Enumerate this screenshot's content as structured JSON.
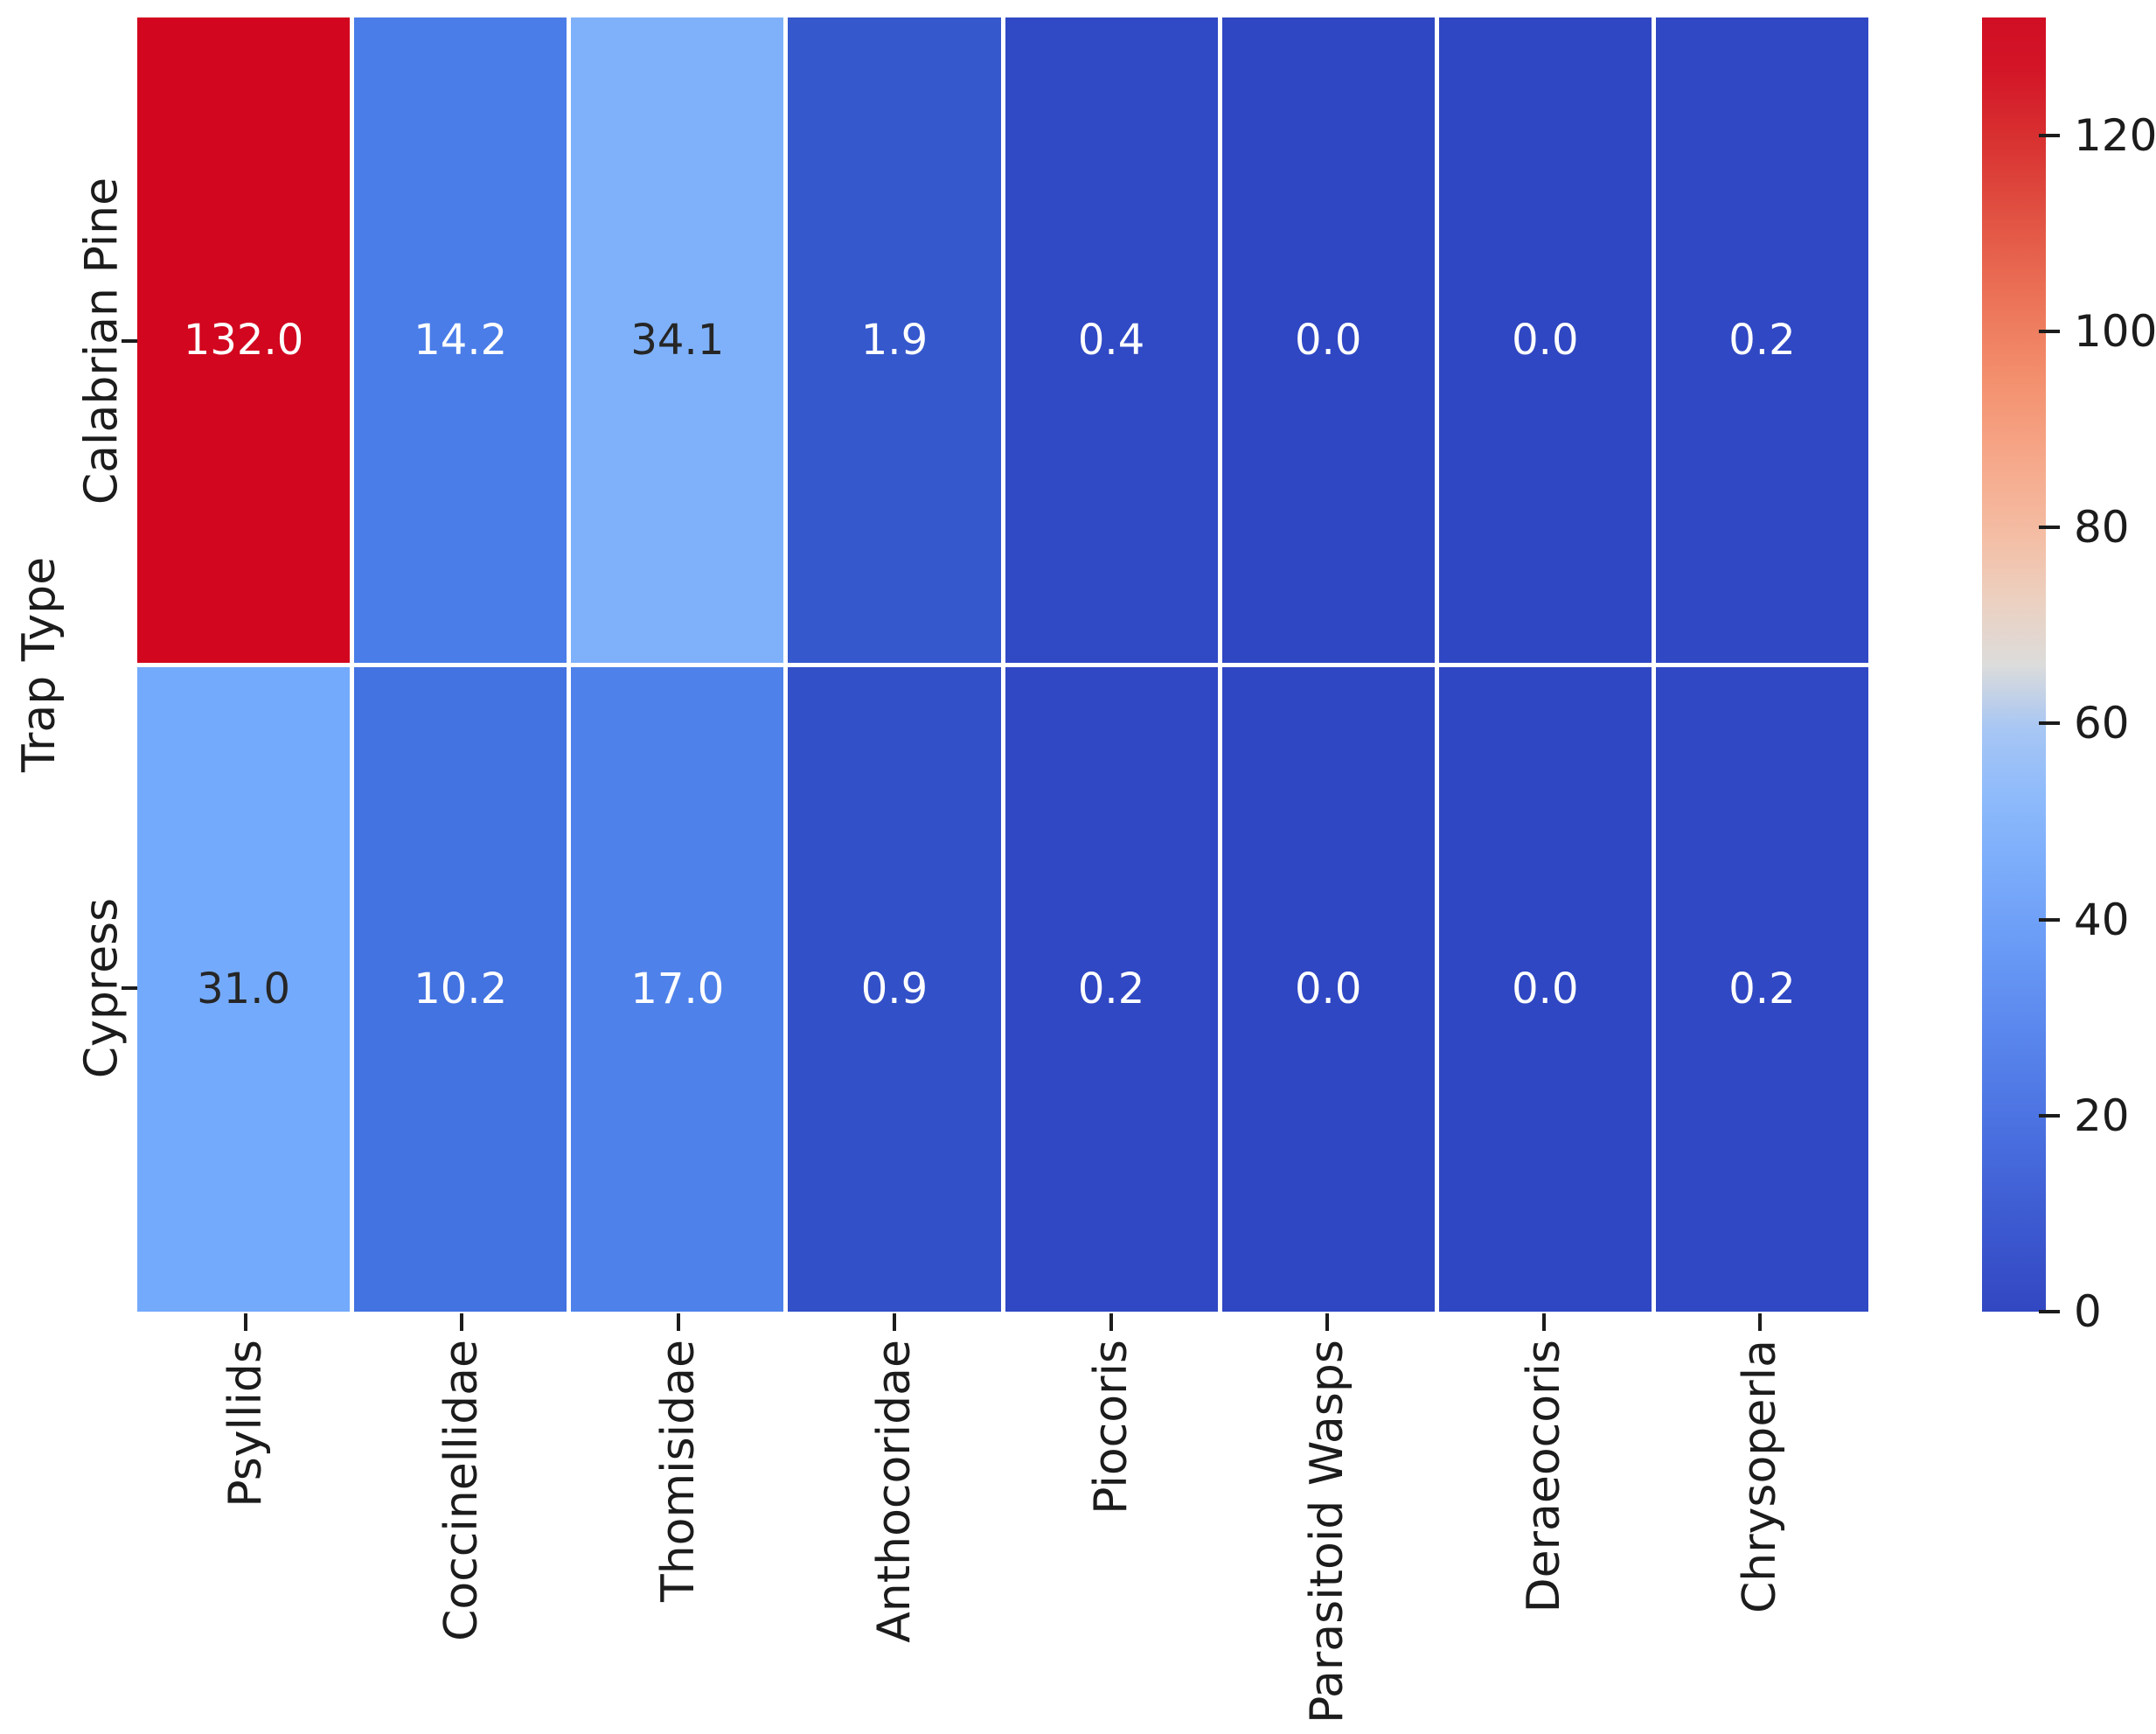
{
  "chart_data": {
    "type": "heatmap",
    "title": "",
    "xlabel": "",
    "ylabel": "Trap Type",
    "rows": [
      "Calabrian Pine",
      "Cypress"
    ],
    "columns": [
      "Psyllids",
      "Coccinellidae",
      "Thomisidae",
      "Anthocoridae",
      "Piocoris",
      "Parasitoid Wasps",
      "Deraeocoris",
      "Chrysoperla"
    ],
    "values": [
      [
        132.0,
        14.2,
        34.1,
        1.9,
        0.4,
        0.0,
        0.0,
        0.2
      ],
      [
        31.0,
        10.2,
        17.0,
        0.9,
        0.2,
        0.0,
        0.0,
        0.2
      ]
    ],
    "cell_text": [
      [
        "132.0",
        "14.2",
        "34.1",
        "1.9",
        "0.4",
        "0.0",
        "0.0",
        "0.2"
      ],
      [
        "31.0",
        "10.2",
        "17.0",
        "0.9",
        "0.2",
        "0.0",
        "0.0",
        "0.2"
      ]
    ],
    "cell_colors": [
      [
        "#d2061f",
        "#4a7de8",
        "#7fb1fa",
        "#3558cd",
        "#3049c5",
        "#2f47c3",
        "#2f47c3",
        "#3048c4"
      ],
      [
        "#74aafb",
        "#4372e1",
        "#4e82ea",
        "#3250c8",
        "#3048c4",
        "#2f47c3",
        "#2f47c3",
        "#3048c4"
      ]
    ],
    "cell_text_colors": [
      [
        "#ffffff",
        "#ffffff",
        "#262626",
        "#ffffff",
        "#ffffff",
        "#ffffff",
        "#ffffff",
        "#ffffff"
      ],
      [
        "#262626",
        "#ffffff",
        "#ffffff",
        "#ffffff",
        "#ffffff",
        "#ffffff",
        "#ffffff",
        "#ffffff"
      ]
    ],
    "colormap": "coolwarm",
    "vmin": 0,
    "vmax": 132,
    "grid_line_color": "#ffffff",
    "colorbar_ticks": [
      120,
      100,
      80,
      60,
      40,
      20,
      0
    ],
    "colorbar_gradient": [
      {
        "pos": 0,
        "color": "#3247c2"
      },
      {
        "pos": 7,
        "color": "#3d5ad1"
      },
      {
        "pos": 14,
        "color": "#4a70e0"
      },
      {
        "pos": 21,
        "color": "#5885ec"
      },
      {
        "pos": 28,
        "color": "#699af6"
      },
      {
        "pos": 35,
        "color": "#7daefb"
      },
      {
        "pos": 40,
        "color": "#8fbbfb"
      },
      {
        "pos": 45,
        "color": "#a7c6f4"
      },
      {
        "pos": 50,
        "color": "#dcdcdb"
      },
      {
        "pos": 55,
        "color": "#ecd0c0"
      },
      {
        "pos": 60,
        "color": "#f4bda4"
      },
      {
        "pos": 66,
        "color": "#f6a789"
      },
      {
        "pos": 72,
        "color": "#f3906e"
      },
      {
        "pos": 78,
        "color": "#ec7458"
      },
      {
        "pos": 84,
        "color": "#e25544"
      },
      {
        "pos": 90,
        "color": "#d93432"
      },
      {
        "pos": 96,
        "color": "#d31527"
      },
      {
        "pos": 100,
        "color": "#d10e24"
      }
    ]
  }
}
